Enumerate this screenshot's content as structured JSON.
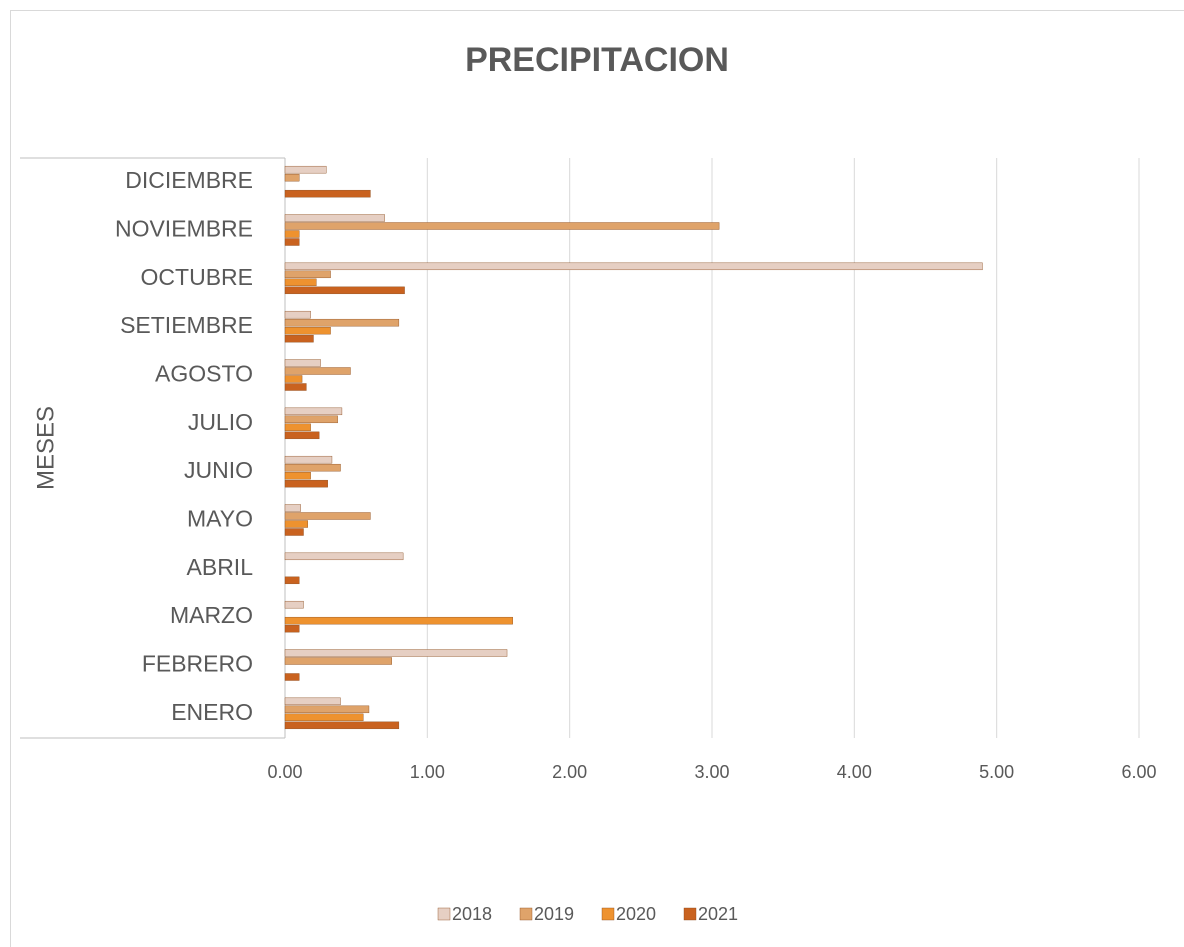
{
  "chart_data": {
    "type": "bar",
    "orientation": "horizontal",
    "title": "PRECIPITACION",
    "y_label": "MESES",
    "categories": [
      "ENERO",
      "FEBRERO",
      "MARZO",
      "ABRIL",
      "MAYO",
      "JUNIO",
      "JULIO",
      "AGOSTO",
      "SETIEMBRE",
      "OCTUBRE",
      "NOVIEMBRE",
      "DICIEMBRE"
    ],
    "series": [
      {
        "name": "2018",
        "color": "#e6cfc3",
        "values": [
          0.39,
          1.56,
          0.13,
          0.83,
          0.11,
          0.33,
          0.4,
          0.25,
          0.18,
          4.9,
          0.7,
          0.29
        ]
      },
      {
        "name": "2019",
        "color": "#dfa36a",
        "values": [
          0.59,
          0.75,
          0,
          0,
          0.6,
          0.39,
          0.37,
          0.46,
          0.8,
          0.32,
          3.05,
          0.1
        ]
      },
      {
        "name": "2020",
        "color": "#ee922f",
        "values": [
          0.55,
          0,
          1.6,
          0,
          0.16,
          0.18,
          0.18,
          0.12,
          0.32,
          0.22,
          0.1,
          0
        ]
      },
      {
        "name": "2021",
        "color": "#c9621f",
        "values": [
          0.8,
          0.1,
          0.1,
          0.1,
          0.13,
          0.3,
          0.24,
          0.15,
          0.2,
          0.84,
          0.1,
          0.6
        ]
      }
    ],
    "xlim": [
      0,
      6
    ],
    "xticks": [
      {
        "value": 0,
        "label": "0.00"
      },
      {
        "value": 1,
        "label": "1.00"
      },
      {
        "value": 2,
        "label": "2.00"
      },
      {
        "value": 3,
        "label": "3.00"
      },
      {
        "value": 4,
        "label": "4.00"
      },
      {
        "value": 5,
        "label": "5.00"
      },
      {
        "value": 6,
        "label": "6.00"
      }
    ],
    "grid": true,
    "legend": "bottom"
  }
}
